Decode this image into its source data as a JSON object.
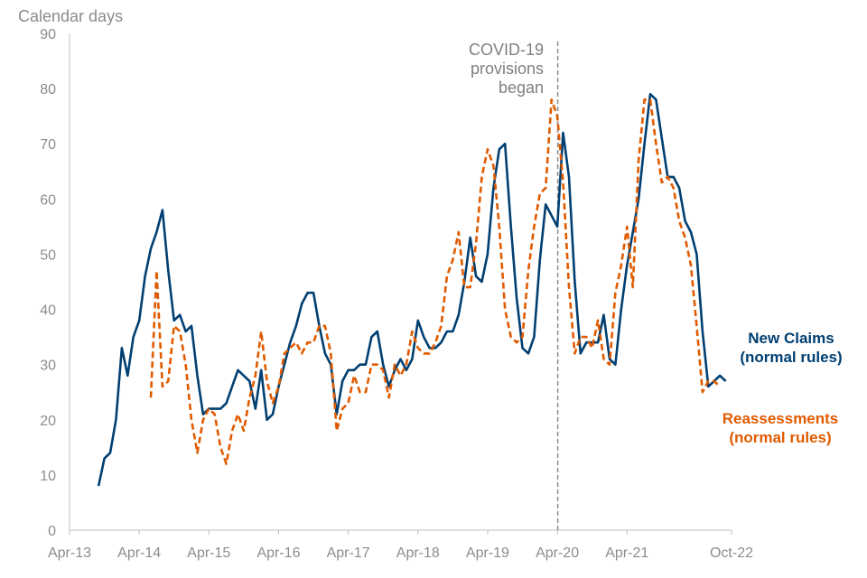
{
  "chart_data": {
    "type": "line",
    "ylabel": "Calendar days",
    "ylim": [
      0,
      90
    ],
    "yticks": [
      "0",
      "10",
      "20",
      "30",
      "40",
      "50",
      "60",
      "70",
      "80",
      "90"
    ],
    "xticks": [
      "Apr-13",
      "Apr-14",
      "Apr-15",
      "Apr-16",
      "Apr-17",
      "Apr-18",
      "Apr-19",
      "Apr-20",
      "Apr-21",
      "Oct-22"
    ],
    "x_range": [
      "Apr-13",
      "Oct-22"
    ],
    "grid": false,
    "annotation": {
      "lines": [
        "COVID-19",
        "provisions",
        "began"
      ],
      "x_month_index": 84
    },
    "series": [
      {
        "name_lines": [
          "New Claims",
          "(normal rules)"
        ],
        "color": "#003f72",
        "style": "solid",
        "start_month_index": 5,
        "values": [
          8,
          13,
          14,
          20,
          33,
          28,
          35,
          38,
          46,
          51,
          54,
          58,
          47,
          38,
          39,
          36,
          37,
          28,
          21,
          22,
          22,
          22,
          23,
          26,
          29,
          28,
          27,
          22,
          29,
          20,
          21,
          26,
          30,
          34,
          37,
          41,
          43,
          43,
          37,
          32,
          30,
          21,
          27,
          29,
          29,
          30,
          30,
          35,
          36,
          30,
          26,
          29,
          31,
          29,
          31,
          38,
          35,
          33,
          33,
          34,
          36,
          36,
          39,
          45,
          53,
          46,
          45,
          50,
          62,
          69,
          70,
          55,
          42,
          33,
          32,
          35,
          49,
          59,
          57,
          55,
          72,
          64,
          45,
          32,
          34,
          34,
          34,
          39,
          31,
          30,
          40,
          48,
          54,
          60,
          70,
          79,
          78,
          71,
          64,
          64,
          62,
          56,
          54,
          50,
          36,
          26,
          27,
          28,
          27
        ]
      },
      {
        "name_lines": [
          "Reassessments",
          "(normal rules)"
        ],
        "color": "#e05b00",
        "style": "dashed",
        "start_month_index": 14,
        "values": [
          24,
          47,
          26,
          27,
          37,
          36,
          30,
          20,
          14,
          20,
          22,
          21,
          15,
          12,
          18,
          21,
          18,
          24,
          28,
          36,
          27,
          23,
          26,
          32,
          33,
          34,
          32,
          34,
          34,
          37,
          37,
          32,
          18,
          22,
          23,
          28,
          25,
          25,
          30,
          30,
          29,
          24,
          30,
          28,
          30,
          36,
          33,
          32,
          32,
          34,
          37,
          46,
          49,
          54,
          44,
          44,
          52,
          64,
          69,
          66,
          55,
          40,
          35,
          34,
          35,
          47,
          55,
          61,
          62,
          78,
          75,
          63,
          44,
          32,
          35,
          35,
          33,
          38,
          31,
          30,
          43,
          48,
          55,
          44,
          67,
          78,
          78,
          70,
          63,
          64,
          62,
          56,
          53,
          48,
          37,
          25,
          27,
          27,
          26
        ]
      }
    ]
  }
}
